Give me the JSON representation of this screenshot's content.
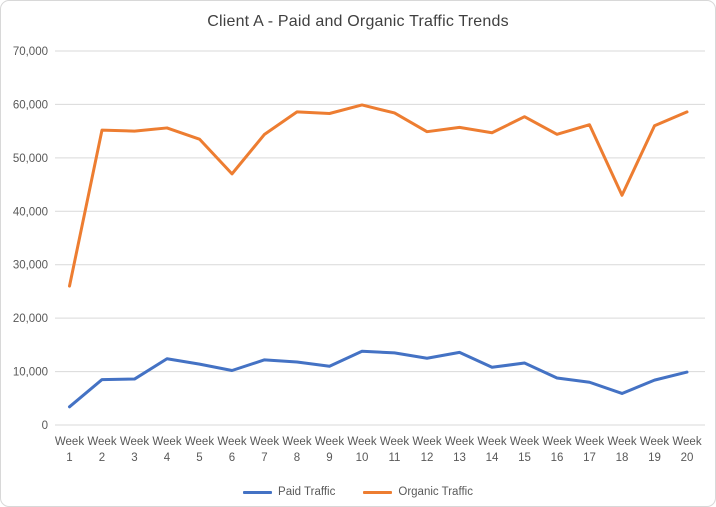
{
  "frame": {
    "background": "#ffffff",
    "border_color": "#d8d8d8"
  },
  "chart_data": {
    "type": "line",
    "title": "Client A - Paid and Organic Traffic Trends",
    "xlabel": "",
    "ylabel": "",
    "categories": [
      "Week 1",
      "Week 2",
      "Week 3",
      "Week 4",
      "Week 5",
      "Week 6",
      "Week 7",
      "Week 8",
      "Week 9",
      "Week 10",
      "Week 11",
      "Week 12",
      "Week 13",
      "Week 14",
      "Week 15",
      "Week 16",
      "Week 17",
      "Week 18",
      "Week 19",
      "Week 20"
    ],
    "series": [
      {
        "name": "Paid Traffic",
        "color": "#4472C4",
        "values": [
          3400,
          8500,
          8600,
          12400,
          11400,
          10200,
          12200,
          11800,
          11000,
          13800,
          13500,
          12500,
          13600,
          10800,
          11600,
          8800,
          8000,
          5900,
          8400,
          9900
        ]
      },
      {
        "name": "Organic Traffic",
        "color": "#ED7D31",
        "values": [
          26000,
          55200,
          55000,
          55600,
          53500,
          47000,
          54400,
          58600,
          58300,
          59900,
          58400,
          54900,
          55700,
          54700,
          57700,
          54400,
          56200,
          43000,
          56000,
          58600
        ]
      }
    ],
    "ylim": [
      0,
      70000
    ],
    "y_ticks": [
      {
        "value": 0,
        "label": "0"
      },
      {
        "value": 10000,
        "label": "10,000"
      },
      {
        "value": 20000,
        "label": "20,000"
      },
      {
        "value": 30000,
        "label": "30,000"
      },
      {
        "value": 40000,
        "label": "40,000"
      },
      {
        "value": 50000,
        "label": "50,000"
      },
      {
        "value": 60000,
        "label": "60,000"
      },
      {
        "value": 70000,
        "label": "70,000"
      }
    ],
    "grid": "horizontal",
    "legend_position": "bottom",
    "colors": {
      "gridline": "#d9d9d9",
      "axis_text": "#595959",
      "title_text": "#404040"
    }
  }
}
